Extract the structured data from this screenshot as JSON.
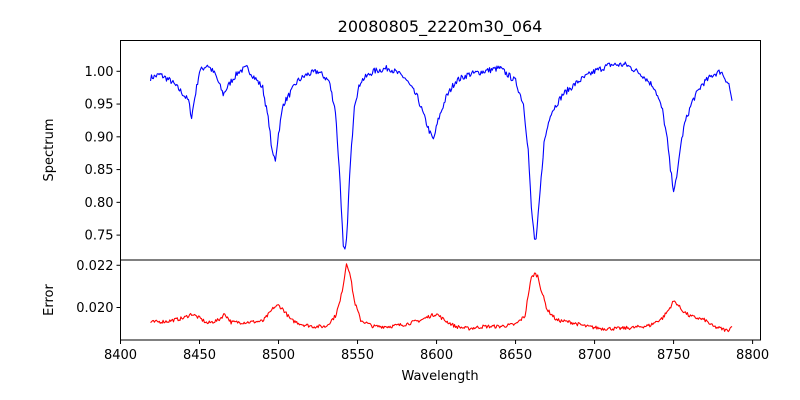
{
  "chart_data": {
    "type": "line",
    "title": "20080805_2220m30_064",
    "xlabel": "Wavelength",
    "xlim": [
      8400,
      8805
    ],
    "xticks": [
      8400,
      8450,
      8500,
      8550,
      8600,
      8650,
      8700,
      8750,
      8800
    ],
    "panels": [
      {
        "name": "spectrum",
        "ylabel": "Spectrum",
        "ylim": [
          0.712,
          1.047
        ],
        "yticks": [
          0.75,
          0.8,
          0.85,
          0.9,
          0.95,
          1.0
        ],
        "ytick_labels": [
          "0.75",
          "0.80",
          "0.85",
          "0.90",
          "0.95",
          "1.00"
        ],
        "series": [
          {
            "name": "Spectrum",
            "color": "#0000ff",
            "x": [
              8419,
              8425,
              8432,
              8438,
              8443,
              8445,
              8447,
              8450,
              8455,
              8460,
              8465,
              8470,
              8475,
              8480,
              8485,
              8490,
              8494,
              8496,
              8498,
              8500,
              8503,
              8507,
              8512,
              8518,
              8525,
              8532,
              8536,
              8539,
              8541,
              8542,
              8543,
              8545,
              8548,
              8552,
              8560,
              8570,
              8580,
              8588,
              8593,
              8596,
              8598,
              8601,
              8606,
              8612,
              8620,
              8630,
              8640,
              8650,
              8655,
              8658,
              8660,
              8662,
              8663,
              8665,
              8668,
              8672,
              8680,
              8690,
              8700,
              8710,
              8720,
              8730,
              8738,
              8743,
              8746,
              8748,
              8750,
              8752,
              8754,
              8757,
              8762,
              8768,
              8775,
              8780,
              8785,
              8787
            ],
            "y": [
              0.99,
              0.995,
              0.985,
              0.97,
              0.955,
              0.93,
              0.96,
              1.0,
              1.01,
              0.995,
              0.965,
              0.985,
              1.0,
              1.005,
              0.99,
              0.975,
              0.92,
              0.875,
              0.865,
              0.905,
              0.95,
              0.965,
              0.985,
              0.995,
              1.0,
              0.985,
              0.94,
              0.83,
              0.73,
              0.725,
              0.74,
              0.84,
              0.95,
              0.985,
              1.0,
              1.005,
              0.99,
              0.96,
              0.925,
              0.905,
              0.895,
              0.925,
              0.96,
              0.985,
              0.995,
              1.0,
              1.005,
              0.985,
              0.95,
              0.88,
              0.79,
              0.745,
              0.74,
              0.8,
              0.89,
              0.935,
              0.965,
              0.985,
              1.0,
              1.01,
              1.01,
              0.995,
              0.975,
              0.94,
              0.895,
              0.85,
              0.82,
              0.835,
              0.88,
              0.92,
              0.955,
              0.98,
              0.995,
              1.0,
              0.98,
              0.955
            ]
          }
        ]
      },
      {
        "name": "error",
        "ylabel": "Error",
        "ylim": [
          0.01846,
          0.02225
        ],
        "yticks": [
          0.02,
          0.022
        ],
        "ytick_labels": [
          "0.020",
          "0.022"
        ],
        "series": [
          {
            "name": "Error",
            "color": "#ff0000",
            "x": [
              8419,
              8430,
              8440,
              8445,
              8450,
              8455,
              8462,
              8466,
              8470,
              8480,
              8490,
              8494,
              8497,
              8500,
              8503,
              8508,
              8515,
              8522,
              8530,
              8536,
              8539,
              8541,
              8543,
              8545,
              8548,
              8552,
              8560,
              8570,
              8580,
              8590,
              8596,
              8600,
              8605,
              8612,
              8620,
              8630,
              8640,
              8650,
              8656,
              8658,
              8660,
              8662,
              8664,
              8666,
              8670,
              8676,
              8685,
              8695,
              8705,
              8715,
              8725,
              8735,
              8743,
              8747,
              8750,
              8752,
              8755,
              8760,
              8765,
              8770,
              8775,
              8780,
              8784,
              8787
            ],
            "y": [
              0.0193,
              0.01935,
              0.0195,
              0.0197,
              0.0195,
              0.01925,
              0.0194,
              0.0197,
              0.0193,
              0.0193,
              0.01935,
              0.0197,
              0.02,
              0.0201,
              0.0199,
              0.0194,
              0.0192,
              0.0191,
              0.0191,
              0.0196,
              0.0203,
              0.0211,
              0.0221,
              0.0217,
              0.0203,
              0.0194,
              0.0191,
              0.0191,
              0.0192,
              0.0194,
              0.0196,
              0.0197,
              0.0194,
              0.0191,
              0.019,
              0.0191,
              0.0191,
              0.0192,
              0.0196,
              0.0206,
              0.0214,
              0.0216,
              0.0215,
              0.0209,
              0.0199,
              0.0194,
              0.0193,
              0.0191,
              0.019,
              0.019,
              0.01905,
              0.01915,
              0.0195,
              0.0199,
              0.0203,
              0.0202,
              0.0199,
              0.0196,
              0.0195,
              0.0194,
              0.0191,
              0.019,
              0.0189,
              0.0191
            ]
          }
        ]
      }
    ]
  }
}
